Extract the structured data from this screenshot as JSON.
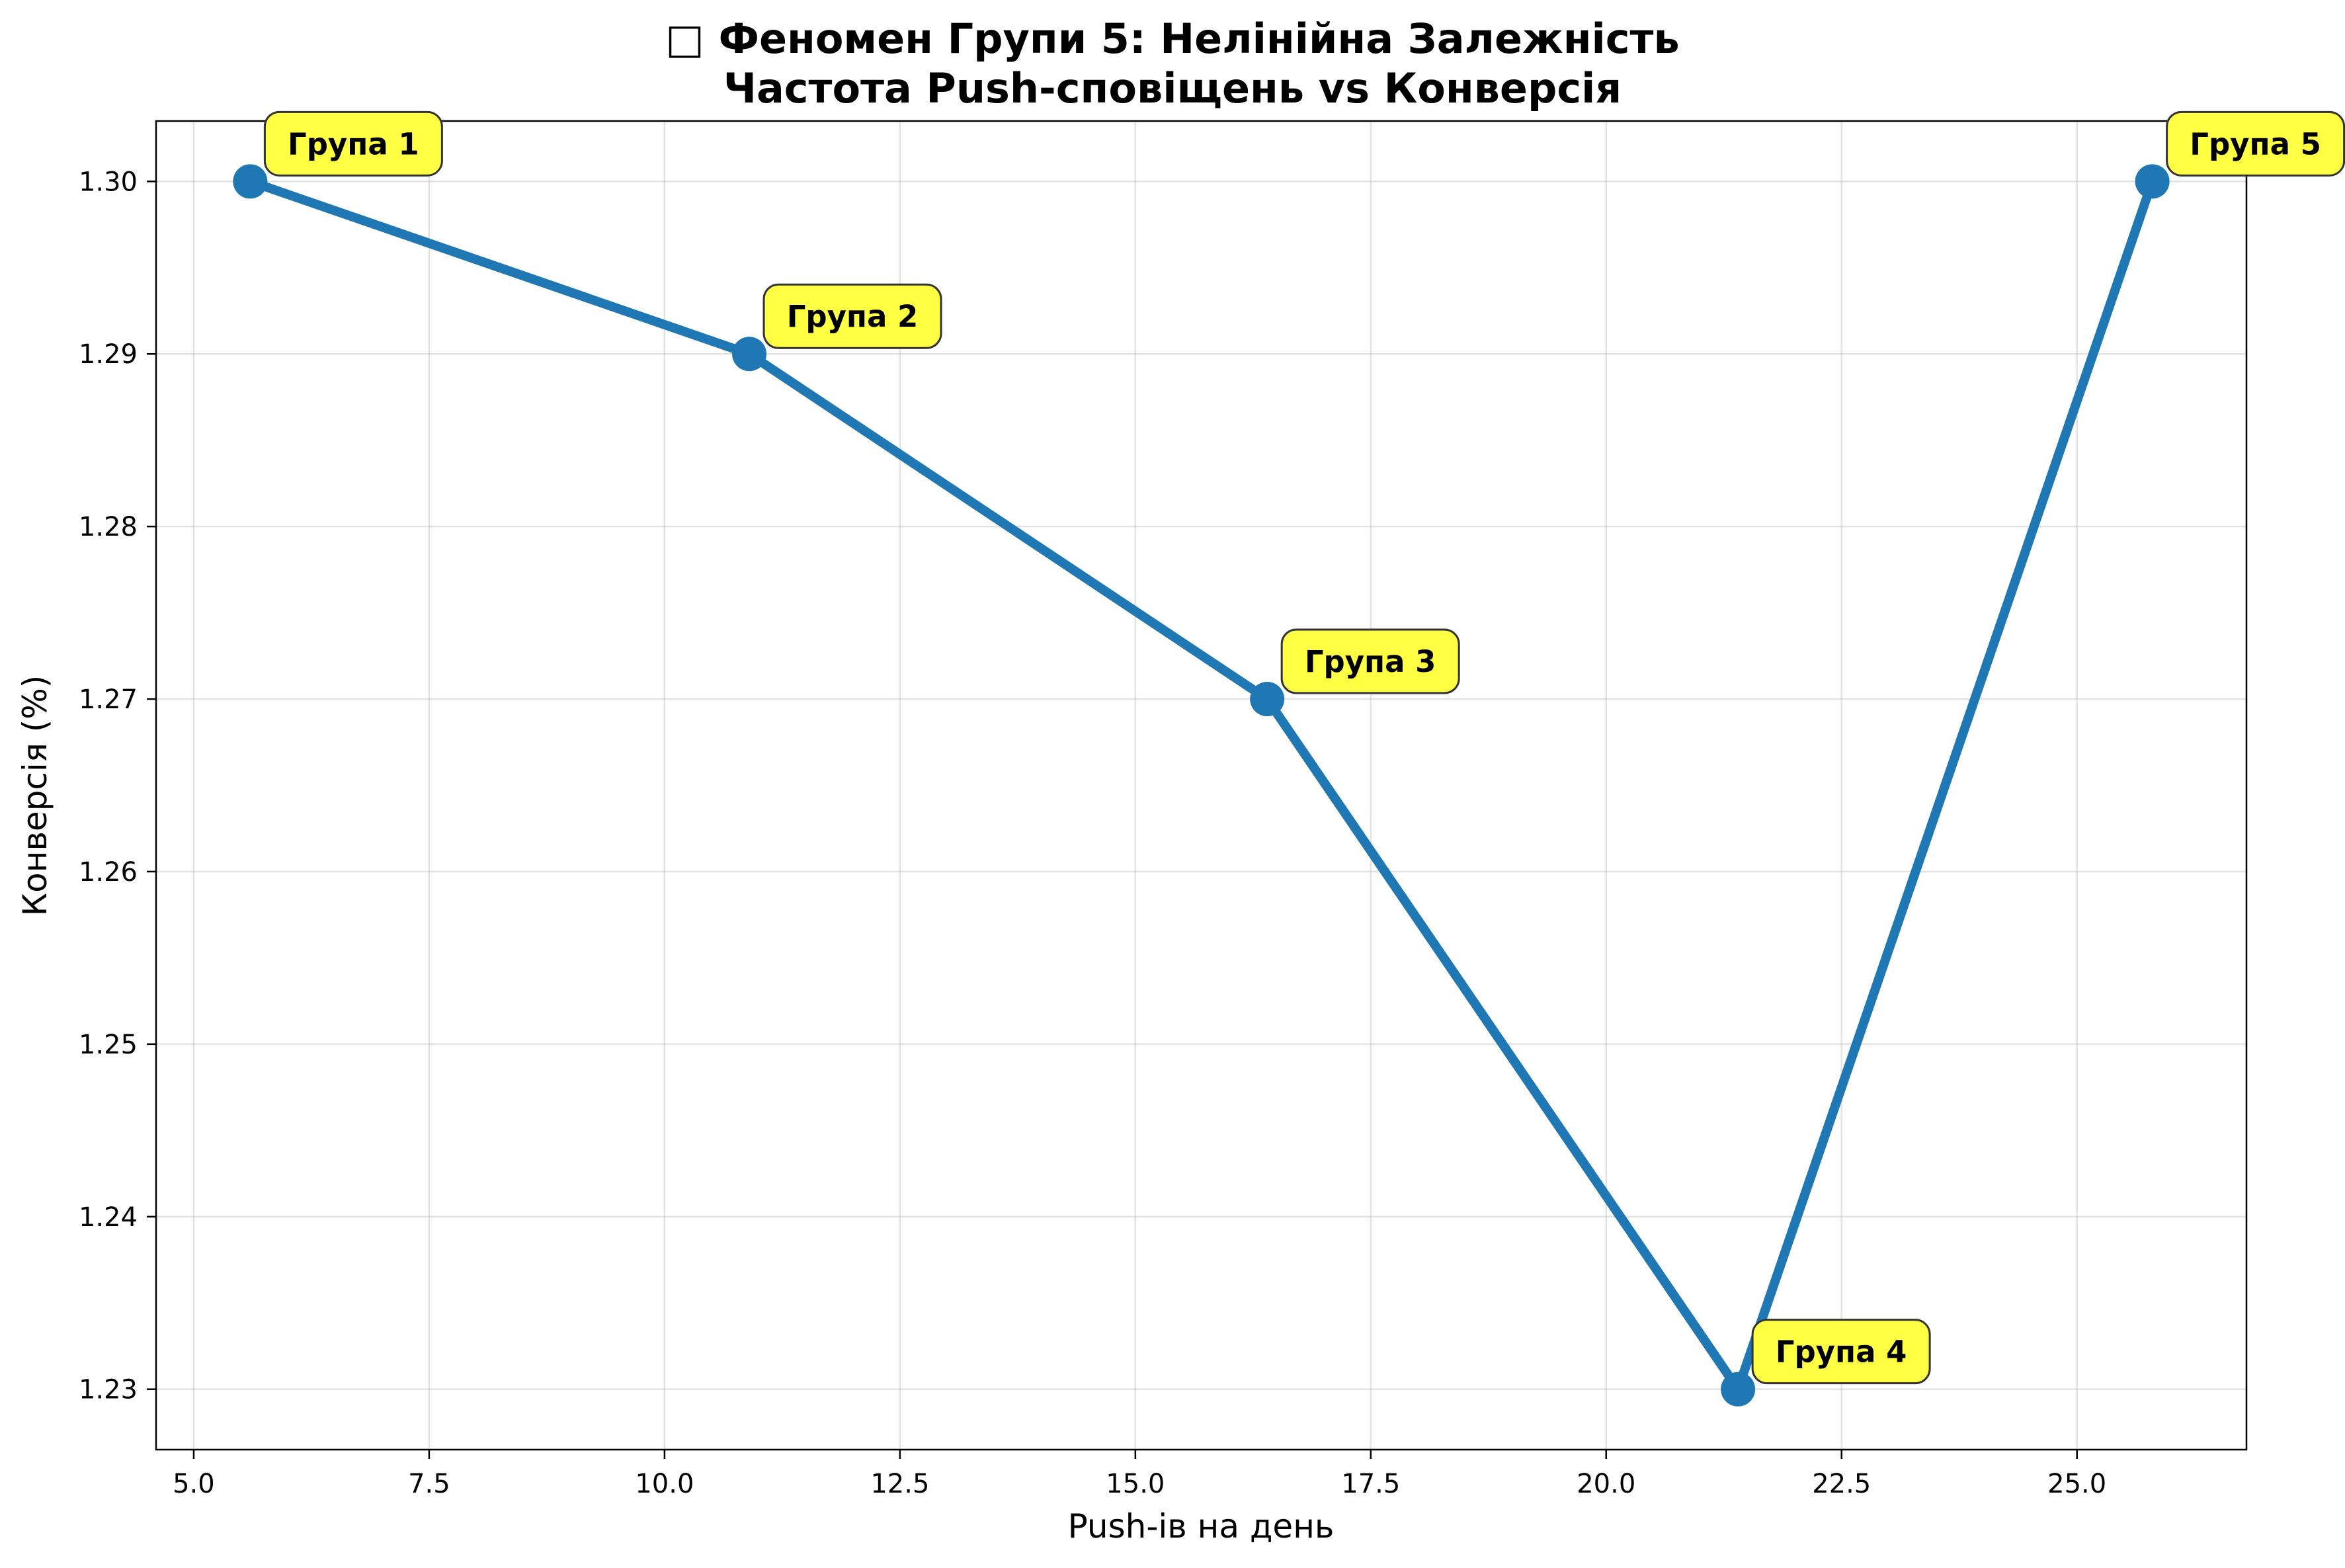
{
  "chart_data": {
    "type": "line",
    "title_line1": "□ Феномен Групи 5: Нелінійна Залежність",
    "title_line2": "Частота Push-сповіщень vs Конверсія",
    "xlabel": "Push-ів на день",
    "ylabel": "Конверсія (%)",
    "xlim": [
      4.6,
      26.8
    ],
    "ylim": [
      1.2265,
      1.3035
    ],
    "xticks": [
      5.0,
      7.5,
      10.0,
      12.5,
      15.0,
      17.5,
      20.0,
      22.5,
      25.0
    ],
    "xtick_labels": [
      "5.0",
      "7.5",
      "10.0",
      "12.5",
      "15.0",
      "17.5",
      "20.0",
      "22.5",
      "25.0"
    ],
    "yticks": [
      1.23,
      1.24,
      1.25,
      1.26,
      1.27,
      1.28,
      1.29,
      1.3
    ],
    "ytick_labels": [
      "1.23",
      "1.24",
      "1.25",
      "1.26",
      "1.27",
      "1.28",
      "1.29",
      "1.30"
    ],
    "grid": true,
    "line_color": "#1f77b4",
    "annotation_fill": "#ffff44",
    "points": [
      {
        "label": "Група 1",
        "x": 5.6,
        "y": 1.3
      },
      {
        "label": "Група 2",
        "x": 10.9,
        "y": 1.29
      },
      {
        "label": "Група 3",
        "x": 16.4,
        "y": 1.27
      },
      {
        "label": "Група 4",
        "x": 21.4,
        "y": 1.23
      },
      {
        "label": "Група 5",
        "x": 25.8,
        "y": 1.3
      }
    ]
  }
}
